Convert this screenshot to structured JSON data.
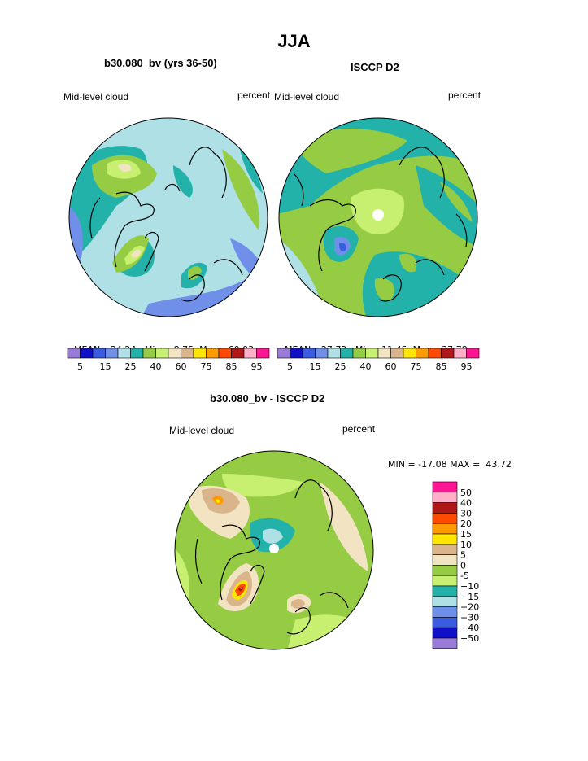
{
  "page": {
    "title": "JJA"
  },
  "panels": [
    {
      "id": "model",
      "title": "b30.080_bv (yrs 36-50)",
      "left_label": "Mid-level cloud",
      "right_label": "percent",
      "stats": {
        "mean_label": "MEAN=",
        "mean": "24.24",
        "min_label": "Min=",
        "min": "8.75",
        "max_label": "Max=",
        "max": "60.03"
      }
    },
    {
      "id": "obs",
      "title": "ISCCP D2",
      "left_label": "Mid-level cloud",
      "right_label": "percent",
      "stats": {
        "mean_label": "MEAN=",
        "mean": "27.72",
        "min_label": "Min=",
        "min": "11.45",
        "max_label": "Max=",
        "max": "37.78"
      }
    }
  ],
  "cloud_colorbar": {
    "colors": [
      "#9a7ad8",
      "#1010c8",
      "#3a5ce0",
      "#6f8fe8",
      "#aee0e6",
      "#22b2aa",
      "#96cc44",
      "#c8f070",
      "#f2e4c2",
      "#dab48a",
      "#ffe600",
      "#ff9a00",
      "#ff4a00",
      "#b01818",
      "#ffb0c8",
      "#ff1493"
    ],
    "labels": [
      "5",
      "15",
      "25",
      "40",
      "60",
      "75",
      "85",
      "95"
    ]
  },
  "difference": {
    "title": "b30.080_bv - ISCCP D2",
    "left_label": "Mid-level cloud",
    "right_label": "percent",
    "stats": "MIN = -17.08 MAX =  43.72"
  },
  "diff_colorbar": {
    "colors": [
      "#ff1493",
      "#ffb0c8",
      "#b01818",
      "#ff4a00",
      "#ff9a00",
      "#ffe600",
      "#dab48a",
      "#f2e4c2",
      "#96cc44",
      "#c8f070",
      "#22b2aa",
      "#aee0e6",
      "#6f8fe8",
      "#3a5ce0",
      "#1010c8",
      "#9a7ad8"
    ],
    "labels": [
      "50",
      "40",
      "30",
      "20",
      "15",
      "10",
      "5",
      "0",
      "-5",
      "−10",
      "−15",
      "−20",
      "−30",
      "−40",
      "−50"
    ]
  }
}
